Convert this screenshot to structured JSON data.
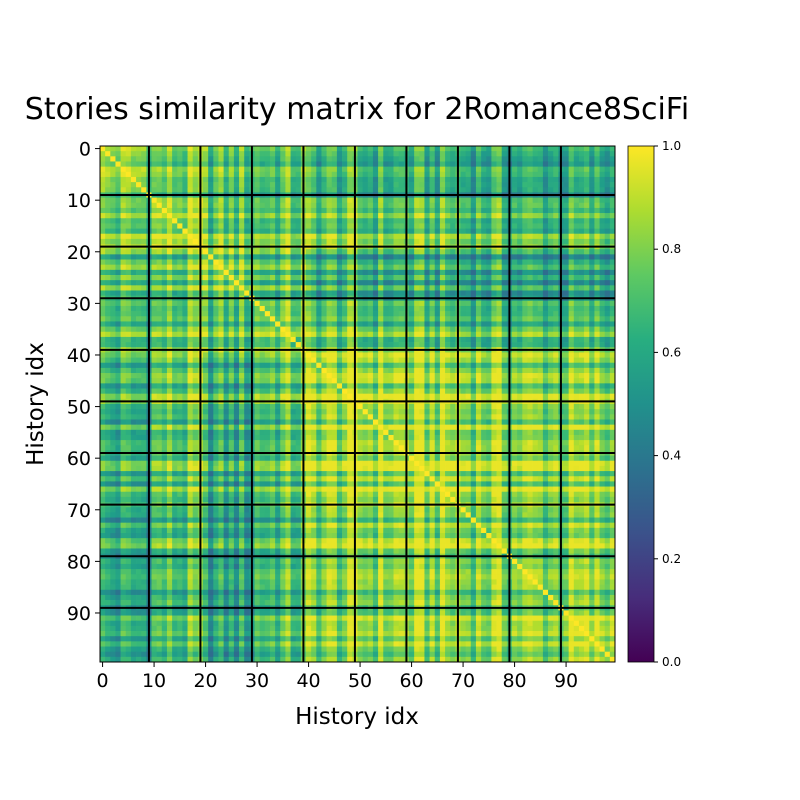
{
  "chart_data": {
    "type": "heatmap",
    "title": "Stories similarity matrix for 2Romance8SciFi",
    "xlabel": "History idx",
    "ylabel": "History idx",
    "size": 100,
    "block_size": 10,
    "x_ticks": [
      0,
      10,
      20,
      30,
      40,
      50,
      60,
      70,
      80,
      90
    ],
    "y_ticks": [
      0,
      10,
      20,
      30,
      40,
      50,
      60,
      70,
      80,
      90
    ],
    "colorbar": {
      "range": [
        0.0,
        1.0
      ],
      "ticks": [
        "0.0",
        "0.2",
        "0.4",
        "0.6",
        "0.8",
        "1.0"
      ],
      "colormap": "viridis"
    },
    "diagonal_value": 1.0,
    "block_mean_similarity": [
      [
        0.8,
        0.74,
        0.7,
        0.7,
        0.64,
        0.62,
        0.62,
        0.6,
        0.58,
        0.56
      ],
      [
        0.74,
        0.82,
        0.72,
        0.74,
        0.74,
        0.72,
        0.72,
        0.7,
        0.68,
        0.66
      ],
      [
        0.7,
        0.72,
        0.78,
        0.72,
        0.62,
        0.6,
        0.6,
        0.58,
        0.56,
        0.54
      ],
      [
        0.7,
        0.74,
        0.72,
        0.8,
        0.74,
        0.72,
        0.72,
        0.7,
        0.7,
        0.68
      ],
      [
        0.64,
        0.74,
        0.62,
        0.74,
        0.86,
        0.86,
        0.84,
        0.82,
        0.8,
        0.78
      ],
      [
        0.62,
        0.72,
        0.6,
        0.72,
        0.86,
        0.88,
        0.86,
        0.84,
        0.82,
        0.8
      ],
      [
        0.62,
        0.72,
        0.6,
        0.72,
        0.84,
        0.86,
        0.88,
        0.84,
        0.82,
        0.8
      ],
      [
        0.6,
        0.7,
        0.58,
        0.7,
        0.82,
        0.84,
        0.84,
        0.82,
        0.8,
        0.8
      ],
      [
        0.58,
        0.68,
        0.56,
        0.7,
        0.8,
        0.82,
        0.82,
        0.8,
        0.8,
        0.8
      ],
      [
        0.56,
        0.66,
        0.54,
        0.68,
        0.78,
        0.8,
        0.8,
        0.8,
        0.8,
        0.84
      ]
    ],
    "colors": {
      "grid_lines": "#000000",
      "low": "#440154",
      "high": "#fde725"
    }
  }
}
